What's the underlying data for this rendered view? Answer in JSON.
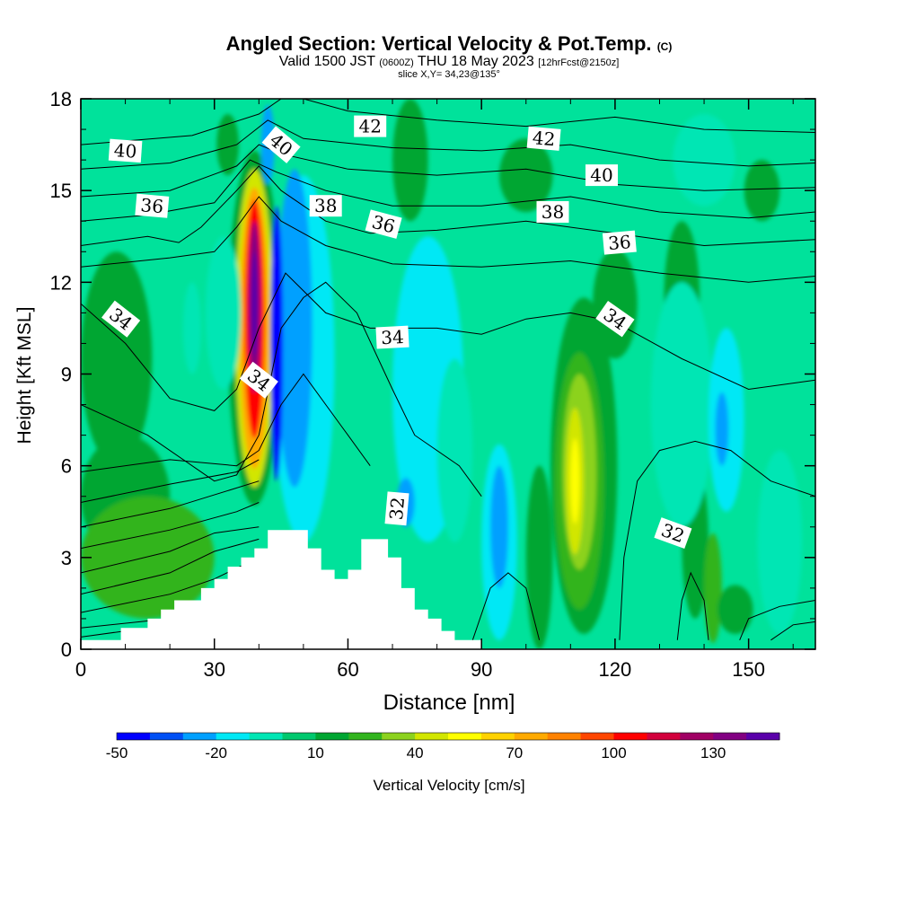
{
  "chart_data": {
    "type": "heatmap",
    "title_main": "Angled Section: Vertical Velocity & Pot.Temp.",
    "title_unit": "(C)",
    "subtitle_pre": "Valid 1500 JST",
    "subtitle_utc": "(0600Z)",
    "subtitle_date": "THU 18 May 2023",
    "subtitle_run": "[12hrFcst@2150z]",
    "slice_info": "slice X,Y= 34,23@135°",
    "xlabel": "Distance [nm]",
    "ylabel": "Height [Kft MSL]",
    "xlim": [
      0,
      165
    ],
    "ylim": [
      0,
      18
    ],
    "x_ticks": [
      0,
      30,
      60,
      90,
      120,
      150
    ],
    "y_ticks": [
      0,
      3,
      6,
      9,
      12,
      15,
      18
    ],
    "background_color": "#00e29b",
    "colorbar": {
      "label": "Vertical Velocity [cm/s]",
      "tick_labels": [
        "-50",
        "-20",
        "10",
        "40",
        "70",
        "100",
        "130"
      ],
      "tick_values": [
        -50,
        -20,
        10,
        40,
        70,
        100,
        130
      ],
      "min": -50,
      "step": 10,
      "colors": [
        "#0000ff",
        "#0050f5",
        "#00a0ff",
        "#00e8f5",
        "#00e6b4",
        "#00c86e",
        "#00a632",
        "#32b41e",
        "#8cd21e",
        "#d2e600",
        "#ffff00",
        "#ffd200",
        "#ffaa00",
        "#ff8200",
        "#ff4600",
        "#ff0000",
        "#d2003c",
        "#a00064",
        "#820082",
        "#5a00aa"
      ]
    },
    "terrain_kft": [
      [
        0,
        0.3
      ],
      [
        9,
        0.3
      ],
      [
        9,
        0.7
      ],
      [
        15,
        0.7
      ],
      [
        15,
        1
      ],
      [
        18,
        1
      ],
      [
        18,
        1.3
      ],
      [
        21,
        1.3
      ],
      [
        21,
        1.6
      ],
      [
        27,
        1.6
      ],
      [
        27,
        2
      ],
      [
        30,
        2
      ],
      [
        30,
        2.3
      ],
      [
        33,
        2.3
      ],
      [
        33,
        2.7
      ],
      [
        36,
        2.7
      ],
      [
        36,
        3
      ],
      [
        39,
        3
      ],
      [
        39,
        3.3
      ],
      [
        42,
        3.3
      ],
      [
        42,
        3.9
      ],
      [
        51,
        3.9
      ],
      [
        51,
        3.3
      ],
      [
        54,
        3.3
      ],
      [
        54,
        2.6
      ],
      [
        57,
        2.6
      ],
      [
        57,
        2.3
      ],
      [
        60,
        2.3
      ],
      [
        60,
        2.6
      ],
      [
        63,
        2.6
      ],
      [
        63,
        3.6
      ],
      [
        69,
        3.6
      ],
      [
        69,
        3
      ],
      [
        72,
        3
      ],
      [
        72,
        2
      ],
      [
        75,
        2
      ],
      [
        75,
        1.3
      ],
      [
        78,
        1.3
      ],
      [
        78,
        1
      ],
      [
        81,
        1
      ],
      [
        81,
        0.6
      ],
      [
        84,
        0.6
      ],
      [
        84,
        0.3
      ],
      [
        90,
        0.3
      ],
      [
        90,
        0
      ]
    ],
    "velocity_cells": [
      {
        "x": 39,
        "y": 10.5,
        "rx": 6.0,
        "ry": 5.8,
        "value": 10
      },
      {
        "x": 39,
        "y": 10.5,
        "rx": 4.3,
        "ry": 5.2,
        "value": 40
      },
      {
        "x": 39,
        "y": 10.5,
        "rx": 3.3,
        "ry": 4.6,
        "value": 70
      },
      {
        "x": 39,
        "y": 10.8,
        "rx": 2.3,
        "ry": 3.9,
        "value": 100
      },
      {
        "x": 39,
        "y": 11.2,
        "rx": 1.3,
        "ry": 2.8,
        "value": 130
      },
      {
        "x": 39,
        "y": 11.3,
        "rx": 0.7,
        "ry": 1.7,
        "value": 140
      },
      {
        "x": 50,
        "y": 9.5,
        "rx": 7.0,
        "ry": 6.0,
        "value": -20
      },
      {
        "x": 48,
        "y": 10.5,
        "rx": 4.0,
        "ry": 5.2,
        "value": -30
      },
      {
        "x": 44,
        "y": 10.0,
        "rx": 1.4,
        "ry": 4.5,
        "value": -50
      },
      {
        "x": 32,
        "y": 11.0,
        "rx": 4.0,
        "ry": 2.5,
        "value": -10
      },
      {
        "x": 78,
        "y": 8.5,
        "rx": 8.0,
        "ry": 5.0,
        "value": -20
      },
      {
        "x": 73,
        "y": 4.8,
        "rx": 2.0,
        "ry": 0.8,
        "value": -30
      },
      {
        "x": 84,
        "y": 6.5,
        "rx": 4.0,
        "ry": 3.0,
        "value": -10
      },
      {
        "x": 94,
        "y": 3.5,
        "rx": 4.0,
        "ry": 3.2,
        "value": -20
      },
      {
        "x": 94,
        "y": 4.0,
        "rx": 2.0,
        "ry": 2.0,
        "value": -30
      },
      {
        "x": 113,
        "y": 6.0,
        "rx": 7.5,
        "ry": 5.5,
        "value": 10
      },
      {
        "x": 112,
        "y": 5.5,
        "rx": 5.5,
        "ry": 4.2,
        "value": 20
      },
      {
        "x": 112,
        "y": 5.8,
        "rx": 3.8,
        "ry": 3.2,
        "value": 30
      },
      {
        "x": 111,
        "y": 5.5,
        "rx": 2.0,
        "ry": 2.4,
        "value": 40
      },
      {
        "x": 111,
        "y": 5.5,
        "rx": 1.0,
        "ry": 1.4,
        "value": 50
      },
      {
        "x": 120,
        "y": 11.3,
        "rx": 5.0,
        "ry": 1.8,
        "value": 10
      },
      {
        "x": 135,
        "y": 11.5,
        "rx": 4.0,
        "ry": 2.5,
        "value": 10
      },
      {
        "x": 138,
        "y": 3.5,
        "rx": 3.0,
        "ry": 2.5,
        "value": 10
      },
      {
        "x": 142,
        "y": 2.0,
        "rx": 2.0,
        "ry": 1.8,
        "value": 20
      },
      {
        "x": 135,
        "y": 8.0,
        "rx": 7.0,
        "ry": 4.0,
        "value": -10
      },
      {
        "x": 145,
        "y": 7.5,
        "rx": 4.0,
        "ry": 3.0,
        "value": -20
      },
      {
        "x": 144,
        "y": 7.2,
        "rx": 1.5,
        "ry": 1.2,
        "value": -30
      },
      {
        "x": 140,
        "y": 16.0,
        "rx": 7.0,
        "ry": 1.5,
        "value": -10
      },
      {
        "x": 33,
        "y": 16.5,
        "rx": 2.5,
        "ry": 1.0,
        "value": 10
      },
      {
        "x": 42,
        "y": 16.5,
        "rx": 1.5,
        "ry": 1.3,
        "value": -30
      },
      {
        "x": 74,
        "y": 16.0,
        "rx": 4.0,
        "ry": 2.0,
        "value": 10
      },
      {
        "x": 100,
        "y": 15.5,
        "rx": 6.0,
        "ry": 1.2,
        "value": 10
      },
      {
        "x": 153,
        "y": 15.0,
        "rx": 4.0,
        "ry": 1.0,
        "value": 10
      },
      {
        "x": 8,
        "y": 9.5,
        "rx": 8.0,
        "ry": 3.5,
        "value": 10
      },
      {
        "x": 10,
        "y": 5.0,
        "rx": 10.0,
        "ry": 2.0,
        "value": 10
      },
      {
        "x": 15,
        "y": 3.0,
        "rx": 15.0,
        "ry": 2.0,
        "value": 20
      },
      {
        "x": 25,
        "y": 10.5,
        "rx": 2.0,
        "ry": 1.5,
        "value": -10
      },
      {
        "x": 103,
        "y": 3.0,
        "rx": 3.0,
        "ry": 3.0,
        "value": 10
      },
      {
        "x": 147,
        "y": 1.3,
        "rx": 4.0,
        "ry": 0.8,
        "value": 10
      },
      {
        "x": 157,
        "y": 3.5,
        "rx": 5.0,
        "ry": 3.0,
        "value": -10
      }
    ],
    "theta_contours": [
      [
        [
          0,
          0.7
        ],
        [
          20,
          1.0
        ],
        [
          30,
          1.5
        ],
        [
          40,
          2.5
        ]
      ],
      [
        [
          0,
          1.2
        ],
        [
          20,
          1.8
        ],
        [
          30,
          2.3
        ],
        [
          40,
          3.0
        ]
      ],
      [
        [
          0,
          1.8
        ],
        [
          20,
          2.5
        ],
        [
          30,
          3.2
        ],
        [
          40,
          3.6
        ]
      ],
      [
        [
          0,
          2.5
        ],
        [
          20,
          3.2
        ],
        [
          30,
          3.8
        ],
        [
          40,
          4.0
        ]
      ],
      [
        [
          0,
          3.3
        ],
        [
          20,
          3.9
        ],
        [
          35,
          4.5
        ],
        [
          40,
          4.8
        ]
      ],
      [
        [
          0,
          4.0
        ],
        [
          20,
          4.6
        ],
        [
          40,
          5.5
        ]
      ],
      [
        [
          0,
          4.8
        ],
        [
          20,
          5.4
        ],
        [
          35,
          5.8
        ],
        [
          40,
          6.2
        ]
      ],
      [
        [
          0,
          5.8
        ],
        [
          20,
          6.2
        ],
        [
          35,
          6.0
        ],
        [
          40,
          6.5
        ],
        [
          45,
          8.0
        ],
        [
          50,
          9.0
        ],
        [
          60,
          7.0
        ],
        [
          65,
          6.0
        ]
      ],
      [
        [
          0,
          8.0
        ],
        [
          15,
          7.0
        ],
        [
          30,
          5.5
        ],
        [
          35,
          5.7
        ],
        [
          40,
          7.0
        ],
        [
          45,
          10.5
        ],
        [
          50,
          11.5
        ],
        [
          55,
          12.0
        ],
        [
          62,
          11.0
        ],
        [
          70,
          8.5
        ],
        [
          75,
          7.0
        ],
        [
          85,
          6.0
        ],
        [
          90,
          5.0
        ]
      ],
      [
        [
          0,
          11.3
        ],
        [
          10,
          10.0
        ],
        [
          20,
          8.2
        ],
        [
          30,
          7.8
        ],
        [
          35,
          8.5
        ],
        [
          40,
          10.5
        ],
        [
          46,
          12.3
        ],
        [
          55,
          11.0
        ],
        [
          65,
          10.5
        ],
        [
          80,
          10.5
        ],
        [
          90,
          10.3
        ],
        [
          100,
          10.8
        ],
        [
          110,
          11.0
        ],
        [
          120,
          10.7
        ],
        [
          135,
          9.5
        ],
        [
          150,
          8.5
        ],
        [
          165,
          8.8
        ]
      ],
      [
        [
          0,
          12.5
        ],
        [
          20,
          12.8
        ],
        [
          30,
          13.0
        ],
        [
          35,
          13.8
        ],
        [
          40,
          14.8
        ],
        [
          45,
          14.0
        ],
        [
          55,
          13.2
        ],
        [
          70,
          12.6
        ],
        [
          90,
          12.5
        ],
        [
          110,
          12.7
        ],
        [
          130,
          12.3
        ],
        [
          150,
          12.0
        ],
        [
          165,
          12.2
        ]
      ],
      [
        [
          0,
          13.2
        ],
        [
          15,
          13.5
        ],
        [
          22,
          13.3
        ],
        [
          27,
          13.8
        ],
        [
          35,
          15.0
        ],
        [
          40,
          15.8
        ],
        [
          45,
          15.0
        ],
        [
          55,
          14.0
        ],
        [
          65,
          13.6
        ],
        [
          80,
          13.7
        ],
        [
          100,
          14.0
        ],
        [
          120,
          13.6
        ],
        [
          140,
          13.2
        ],
        [
          165,
          13.4
        ]
      ],
      [
        [
          0,
          14.0
        ],
        [
          15,
          14.2
        ],
        [
          30,
          14.6
        ],
        [
          38,
          16.0
        ],
        [
          44,
          15.6
        ],
        [
          55,
          15.0
        ],
        [
          70,
          14.5
        ],
        [
          90,
          14.5
        ],
        [
          110,
          14.8
        ],
        [
          130,
          14.3
        ],
        [
          150,
          14.1
        ],
        [
          165,
          14.3
        ]
      ],
      [
        [
          0,
          14.8
        ],
        [
          20,
          15.0
        ],
        [
          35,
          15.8
        ],
        [
          40,
          16.5
        ],
        [
          45,
          16.2
        ],
        [
          60,
          15.7
        ],
        [
          80,
          15.5
        ],
        [
          100,
          15.7
        ],
        [
          120,
          15.2
        ],
        [
          140,
          15.0
        ],
        [
          165,
          15.1
        ]
      ],
      [
        [
          0,
          15.7
        ],
        [
          20,
          15.9
        ],
        [
          35,
          16.5
        ],
        [
          42,
          17.3
        ],
        [
          50,
          16.7
        ],
        [
          70,
          16.4
        ],
        [
          90,
          16.3
        ],
        [
          110,
          16.5
        ],
        [
          130,
          16.0
        ],
        [
          150,
          15.8
        ],
        [
          165,
          15.9
        ]
      ],
      [
        [
          0,
          16.5
        ],
        [
          25,
          16.8
        ],
        [
          40,
          17.5
        ],
        [
          45,
          18.0
        ]
      ],
      [
        [
          50,
          18.0
        ],
        [
          60,
          17.6
        ],
        [
          80,
          17.3
        ],
        [
          100,
          17.1
        ],
        [
          120,
          17.4
        ],
        [
          140,
          17.0
        ],
        [
          165,
          16.9
        ]
      ],
      [
        [
          88,
          0.3
        ],
        [
          92,
          2.0
        ],
        [
          96,
          2.5
        ],
        [
          100,
          2.0
        ],
        [
          103,
          0.3
        ]
      ],
      [
        [
          121,
          0.3
        ],
        [
          122,
          3.0
        ],
        [
          125,
          5.5
        ],
        [
          130,
          6.5
        ],
        [
          138,
          6.8
        ],
        [
          146,
          6.5
        ],
        [
          155,
          5.5
        ],
        [
          165,
          5.0
        ]
      ],
      [
        [
          148,
          0.3
        ],
        [
          150,
          1.0
        ],
        [
          157,
          1.4
        ],
        [
          165,
          1.6
        ]
      ],
      [
        [
          155,
          0.3
        ],
        [
          160,
          0.8
        ],
        [
          165,
          0.9
        ]
      ],
      [
        [
          134,
          0.3
        ],
        [
          135,
          1.6
        ],
        [
          137,
          2.5
        ],
        [
          140,
          1.6
        ],
        [
          141,
          0.3
        ]
      ],
      [
        [
          0,
          0.4
        ],
        [
          10,
          0.6
        ]
      ]
    ],
    "contour_labels": [
      {
        "text": "40",
        "x": 10,
        "y": 16.3,
        "angle": 4
      },
      {
        "text": "36",
        "x": 16,
        "y": 14.5,
        "angle": 5
      },
      {
        "text": "34",
        "x": 9,
        "y": 10.8,
        "angle": 38
      },
      {
        "text": "34",
        "x": 40,
        "y": 8.8,
        "angle": 38
      },
      {
        "text": "40",
        "x": 45,
        "y": 16.5,
        "angle": 40
      },
      {
        "text": "38",
        "x": 55,
        "y": 14.5,
        "angle": 0
      },
      {
        "text": "42",
        "x": 65,
        "y": 17.1,
        "angle": 0
      },
      {
        "text": "36",
        "x": 68,
        "y": 13.9,
        "angle": 15
      },
      {
        "text": "34",
        "x": 70,
        "y": 10.2,
        "angle": -3
      },
      {
        "text": "32",
        "x": 71,
        "y": 4.6,
        "angle": -85
      },
      {
        "text": "42",
        "x": 104,
        "y": 16.7,
        "angle": 5
      },
      {
        "text": "40",
        "x": 117,
        "y": 15.5,
        "angle": 0
      },
      {
        "text": "38",
        "x": 106,
        "y": 14.3,
        "angle": 0
      },
      {
        "text": "36",
        "x": 121,
        "y": 13.3,
        "angle": -5
      },
      {
        "text": "34",
        "x": 120,
        "y": 10.8,
        "angle": 35
      },
      {
        "text": "32",
        "x": 133,
        "y": 3.8,
        "angle": 20
      }
    ]
  }
}
